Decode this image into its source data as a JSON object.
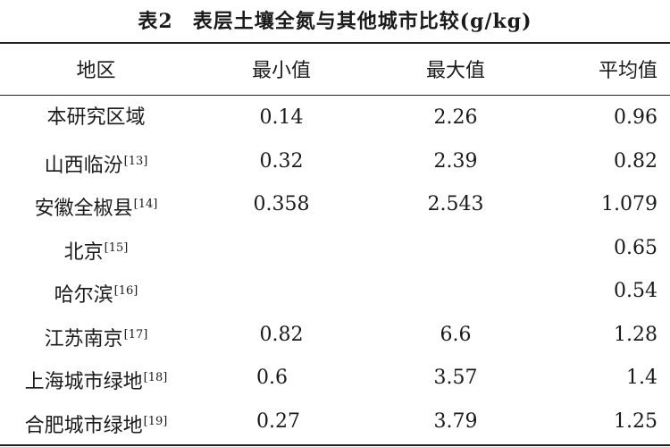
{
  "title": {
    "number": "表2",
    "text": "表层土壤全氮与其他城市比较(g/kg)"
  },
  "table": {
    "headers": [
      "地区",
      "最小值",
      "最大值",
      "平均值"
    ],
    "rows": [
      {
        "region": "本研究区域",
        "ref": "",
        "min": "0.14",
        "max": "2.26",
        "avg": "0.96"
      },
      {
        "region": "山西临汾",
        "ref": "[13]",
        "min": "0.32",
        "max": "2.39",
        "avg": "0.82"
      },
      {
        "region": "安徽全椒县",
        "ref": "[14]",
        "min": "0.358",
        "max": "2.543",
        "avg": "1.079"
      },
      {
        "region": "北京",
        "ref": "[15]",
        "min": "",
        "max": "",
        "avg": "0.65"
      },
      {
        "region": "哈尔滨",
        "ref": "[16]",
        "min": "",
        "max": "",
        "avg": "0.54"
      },
      {
        "region": "江苏南京",
        "ref": "[17]",
        "min": "0.82",
        "max": "6.6",
        "avg": "1.28"
      },
      {
        "region": "上海城市绿地",
        "ref": "[18]",
        "min": "0.6",
        "max": "3.57",
        "avg": "1.4"
      },
      {
        "region": "合肥城市绿地",
        "ref": "[19]",
        "min": "0.27",
        "max": "3.79",
        "avg": "1.25"
      }
    ]
  }
}
